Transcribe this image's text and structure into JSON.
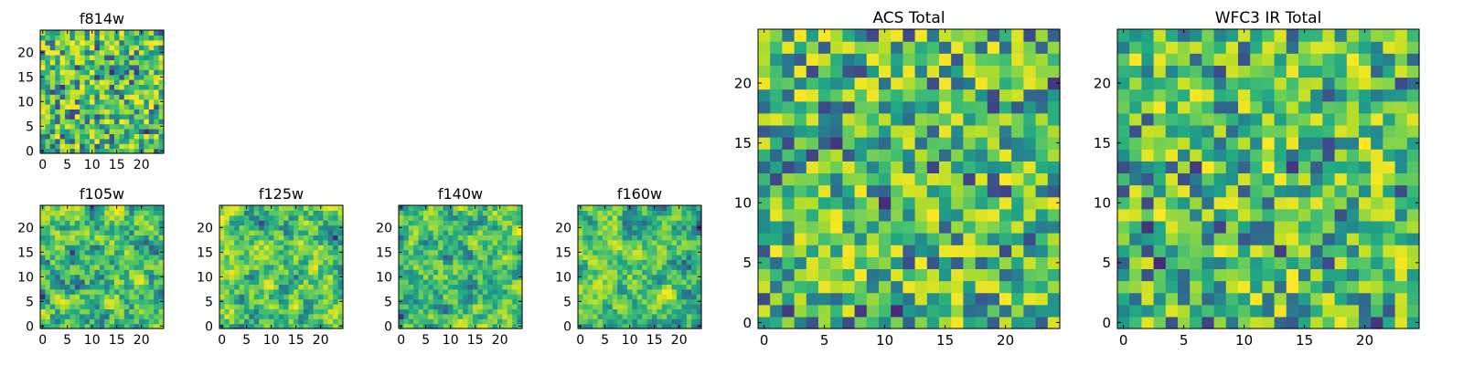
{
  "chart_data": [
    {
      "type": "heatmap",
      "title": "f814w",
      "grid_size": 25,
      "xticks": [
        "0",
        "5",
        "10",
        "15",
        "20"
      ],
      "yticks": [
        "0",
        "5",
        "10",
        "15",
        "20"
      ],
      "colormap": "viridis",
      "texture": "pixel",
      "seed": 11
    },
    {
      "type": "heatmap",
      "title": "f105w",
      "grid_size": 25,
      "xticks": [
        "0",
        "5",
        "10",
        "15",
        "20"
      ],
      "yticks": [
        "0",
        "5",
        "10",
        "15",
        "20"
      ],
      "colormap": "viridis",
      "texture": "smooth",
      "seed": 23
    },
    {
      "type": "heatmap",
      "title": "f125w",
      "grid_size": 25,
      "xticks": [
        "0",
        "5",
        "10",
        "15",
        "20"
      ],
      "yticks": [
        "0",
        "5",
        "10",
        "15",
        "20"
      ],
      "colormap": "viridis",
      "texture": "smooth",
      "seed": 37
    },
    {
      "type": "heatmap",
      "title": "f140w",
      "grid_size": 25,
      "xticks": [
        "0",
        "5",
        "10",
        "15",
        "20"
      ],
      "yticks": [
        "0",
        "5",
        "10",
        "15",
        "20"
      ],
      "colormap": "viridis",
      "texture": "smooth",
      "seed": 41
    },
    {
      "type": "heatmap",
      "title": "f160w",
      "grid_size": 25,
      "xticks": [
        "0",
        "5",
        "10",
        "15",
        "20"
      ],
      "yticks": [
        "0",
        "5",
        "10",
        "15",
        "20"
      ],
      "colormap": "viridis",
      "texture": "smooth",
      "seed": 53
    },
    {
      "type": "heatmap",
      "title": "ACS Total",
      "grid_size": 25,
      "xticks": [
        "0",
        "5",
        "10",
        "15",
        "20"
      ],
      "yticks": [
        "0",
        "5",
        "10",
        "15",
        "20"
      ],
      "colormap": "viridis",
      "texture": "pixel",
      "seed": 67
    },
    {
      "type": "heatmap",
      "title": "WFC3 IR Total",
      "grid_size": 25,
      "xticks": [
        "0",
        "5",
        "10",
        "15",
        "20"
      ],
      "yticks": [
        "0",
        "5",
        "10",
        "15",
        "20"
      ],
      "colormap": "viridis",
      "texture": "pixel",
      "seed": 79
    }
  ],
  "colors": {
    "viridis_dark": "#440154",
    "viridis_blue": "#3b528b",
    "viridis_teal": "#21918c",
    "viridis_green": "#5ec962",
    "viridis_yellow": "#fde725"
  }
}
